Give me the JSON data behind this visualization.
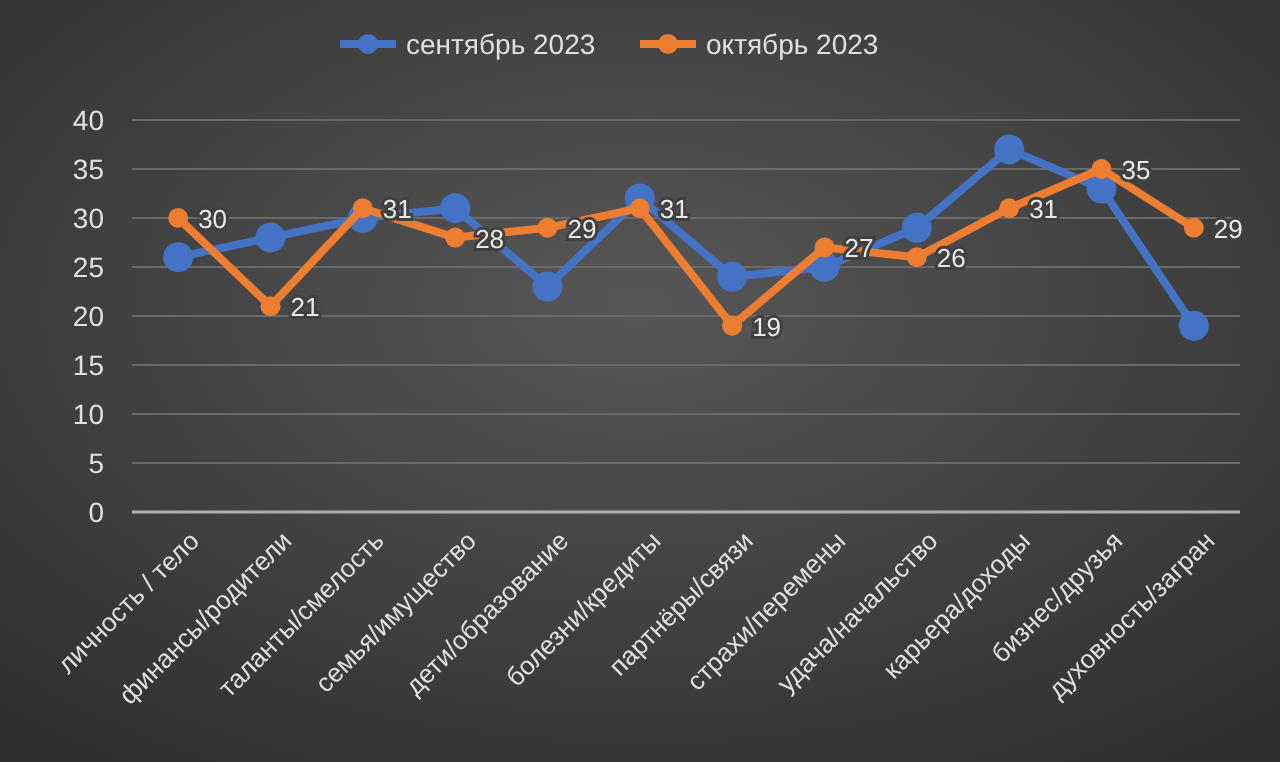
{
  "chart_data": {
    "type": "line",
    "categories": [
      "личность / тело",
      "финансы/родители",
      "таланты/смелость",
      "семья/имущество",
      "дети/образование",
      "болезни/кредиты",
      "партнёры/связи",
      "страхи/перемены",
      "удача/начальство",
      "карьера/доходы",
      "бизнес/друзья",
      "духовность/загран"
    ],
    "series": [
      {
        "name": "сентябрь 2023",
        "color": "#4472c4",
        "values": [
          26,
          28,
          30,
          31,
          23,
          32,
          24,
          25,
          29,
          37,
          33,
          19
        ]
      },
      {
        "name": "октябрь 2023",
        "color": "#ed7d31",
        "values": [
          30,
          21,
          31,
          28,
          29,
          31,
          19,
          27,
          26,
          31,
          35,
          29
        ],
        "value_labels": [
          "30",
          "21",
          "31",
          "28",
          "29",
          "31",
          "19",
          "27",
          "26",
          "31",
          "35",
          "29"
        ]
      }
    ],
    "ylim": [
      0,
      40
    ],
    "yticks": [
      0,
      5,
      10,
      15,
      20,
      25,
      30,
      35,
      40
    ],
    "grid": "y",
    "legend": "top",
    "marker": "circle",
    "line_style": "solid"
  }
}
